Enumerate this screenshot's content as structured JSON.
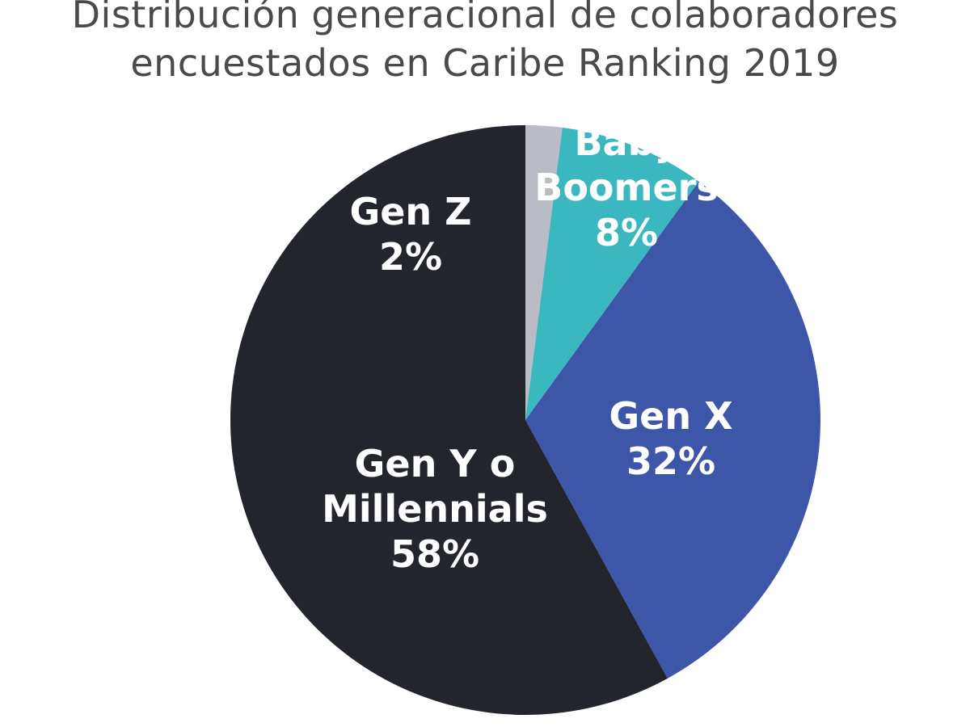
{
  "chart_data": {
    "type": "pie",
    "title_lines": [
      "Distribución generacional de colaboradores",
      "encuestados en Caribe Ranking 2019"
    ],
    "slices": [
      {
        "name": "Gen Z",
        "label_lines": [
          "Gen Z",
          "2%"
        ],
        "value": 2,
        "color": "#b9bcc5"
      },
      {
        "name": "Baby Boomers",
        "label_lines": [
          "Baby",
          "Boomers",
          "8%"
        ],
        "value": 8,
        "color": "#3bb8bf"
      },
      {
        "name": "Gen X",
        "label_lines": [
          "Gen X",
          "32%"
        ],
        "value": 32,
        "color": "#3d56a8"
      },
      {
        "name": "Gen Y o Millennials",
        "label_lines": [
          "Gen Y o",
          "Millennials",
          "58%"
        ],
        "value": 58,
        "color": "#23252d"
      }
    ],
    "legend": "none"
  }
}
